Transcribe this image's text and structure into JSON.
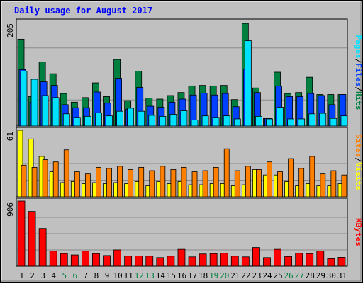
{
  "title": "Daily usage for August 2017",
  "colors": {
    "hits": "#008040",
    "files": "#0040ff",
    "pages": "#00e0ff",
    "visits": "#ffff00",
    "sites": "#ff8000",
    "kbytes": "#ff0000",
    "title": "#0000ff",
    "weekend_label": "#008040",
    "weekday_label": "#000000",
    "panel_bg": "#c0c0c0",
    "frame_bg": "#bfbfbf"
  },
  "days": [
    "1",
    "2",
    "3",
    "4",
    "5",
    "6",
    "7",
    "8",
    "9",
    "10",
    "11",
    "12",
    "13",
    "14",
    "15",
    "16",
    "17",
    "18",
    "19",
    "20",
    "21",
    "22",
    "23",
    "24",
    "25",
    "26",
    "27",
    "28",
    "29",
    "30",
    "31"
  ],
  "weekend_days": [
    "5",
    "6",
    "12",
    "13",
    "19",
    "20",
    "26",
    "27"
  ],
  "chart_data": [
    {
      "type": "bar",
      "name": "hits-files-pages",
      "ymax_label": "205",
      "ylim": [
        0,
        205
      ],
      "legend": [
        "Pages",
        "Files",
        "Hits"
      ],
      "legend_separator": "/",
      "legend_placement": "right",
      "grid": true,
      "series": [
        {
          "name": "Hits",
          "values": [
            171,
            58,
            126,
            103,
            64,
            47,
            56,
            85,
            58,
            131,
            50,
            108,
            55,
            53,
            60,
            66,
            79,
            80,
            79,
            80,
            52,
            202,
            75,
            15,
            106,
            64,
            66,
            96,
            62,
            62,
            62
          ]
        },
        {
          "name": "Files",
          "values": [
            111,
            47,
            87,
            80,
            42,
            36,
            36,
            67,
            45,
            94,
            33,
            76,
            39,
            37,
            47,
            53,
            61,
            65,
            61,
            64,
            38,
            112,
            66,
            15,
            79,
            58,
            58,
            64,
            60,
            42,
            62
          ]
        },
        {
          "name": "Pages",
          "values": [
            108,
            92,
            60,
            56,
            24,
            17,
            19,
            26,
            20,
            29,
            35,
            29,
            21,
            19,
            23,
            30,
            12,
            20,
            17,
            20,
            14,
            168,
            19,
            14,
            37,
            14,
            14,
            24,
            25,
            15,
            20
          ]
        }
      ]
    },
    {
      "type": "bar",
      "name": "visits-sites",
      "ymax_label": "61",
      "ylim": [
        0,
        61
      ],
      "legend": [
        "Sites",
        "Visits"
      ],
      "legend_separator": "/",
      "legend_placement": "right",
      "grid": true,
      "series": [
        {
          "name": "Visits",
          "values": [
            61,
            53,
            37,
            23,
            13,
            14,
            12,
            13,
            12,
            13,
            12,
            14,
            10,
            14,
            12,
            14,
            11,
            11,
            12,
            12,
            10,
            11,
            25,
            20,
            20,
            14,
            10,
            12,
            10,
            10,
            12
          ]
        },
        {
          "name": "Sites",
          "values": [
            29,
            27,
            34,
            32,
            43,
            23,
            21,
            27,
            26,
            28,
            25,
            27,
            24,
            28,
            25,
            27,
            23,
            24,
            27,
            44,
            24,
            28,
            25,
            32,
            23,
            35,
            26,
            37,
            21,
            24,
            20
          ]
        }
      ]
    },
    {
      "type": "bar",
      "name": "kbytes",
      "ymax_label": "906",
      "ylim": [
        0,
        906
      ],
      "legend": [
        "KBytes"
      ],
      "legend_placement": "right",
      "grid": true,
      "series": [
        {
          "name": "KBytes",
          "values": [
            906,
            762,
            525,
            210,
            176,
            157,
            210,
            175,
            149,
            227,
            140,
            142,
            140,
            120,
            140,
            235,
            130,
            170,
            175,
            180,
            140,
            130,
            260,
            120,
            235,
            135,
            180,
            175,
            210,
            105,
            124
          ]
        }
      ]
    }
  ]
}
